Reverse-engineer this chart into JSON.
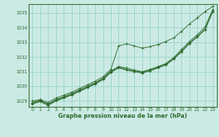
{
  "title": "Graphe pression niveau de la mer (hPa)",
  "bg_color": "#cceae4",
  "grid_color": "#99d5cc",
  "line_color": "#2d6a2d",
  "xlim": [
    -0.5,
    23.5
  ],
  "ylim": [
    1028.6,
    1035.6
  ],
  "yticks": [
    1029,
    1030,
    1031,
    1032,
    1033,
    1034,
    1035
  ],
  "xticks": [
    0,
    1,
    2,
    3,
    4,
    5,
    6,
    7,
    8,
    9,
    10,
    11,
    12,
    13,
    14,
    15,
    16,
    17,
    18,
    19,
    20,
    21,
    22,
    23
  ],
  "lines": [
    [
      1029.0,
      1029.1,
      1028.9,
      1029.2,
      1029.4,
      1029.6,
      1029.85,
      1030.1,
      1030.35,
      1030.65,
      1031.15,
      1032.75,
      1032.9,
      1032.75,
      1032.6,
      1032.7,
      1032.85,
      1033.05,
      1033.3,
      1033.75,
      1034.25,
      1034.65,
      1035.1,
      1035.45
    ],
    [
      1028.9,
      1029.05,
      1028.8,
      1029.1,
      1029.3,
      1029.5,
      1029.75,
      1030.0,
      1030.25,
      1030.55,
      1031.05,
      1031.35,
      1031.25,
      1031.1,
      1031.0,
      1031.15,
      1031.35,
      1031.55,
      1031.95,
      1032.5,
      1033.05,
      1033.5,
      1034.05,
      1035.25
    ],
    [
      1028.85,
      1029.0,
      1028.75,
      1029.05,
      1029.25,
      1029.45,
      1029.7,
      1029.95,
      1030.2,
      1030.5,
      1031.0,
      1031.3,
      1031.15,
      1031.05,
      1030.95,
      1031.1,
      1031.3,
      1031.5,
      1031.9,
      1032.4,
      1032.95,
      1033.4,
      1033.9,
      1035.15
    ],
    [
      1028.8,
      1028.95,
      1028.7,
      1029.0,
      1029.2,
      1029.4,
      1029.65,
      1029.9,
      1030.15,
      1030.45,
      1030.95,
      1031.25,
      1031.1,
      1031.0,
      1030.9,
      1031.05,
      1031.25,
      1031.45,
      1031.85,
      1032.35,
      1032.9,
      1033.35,
      1033.85,
      1035.1
    ]
  ]
}
